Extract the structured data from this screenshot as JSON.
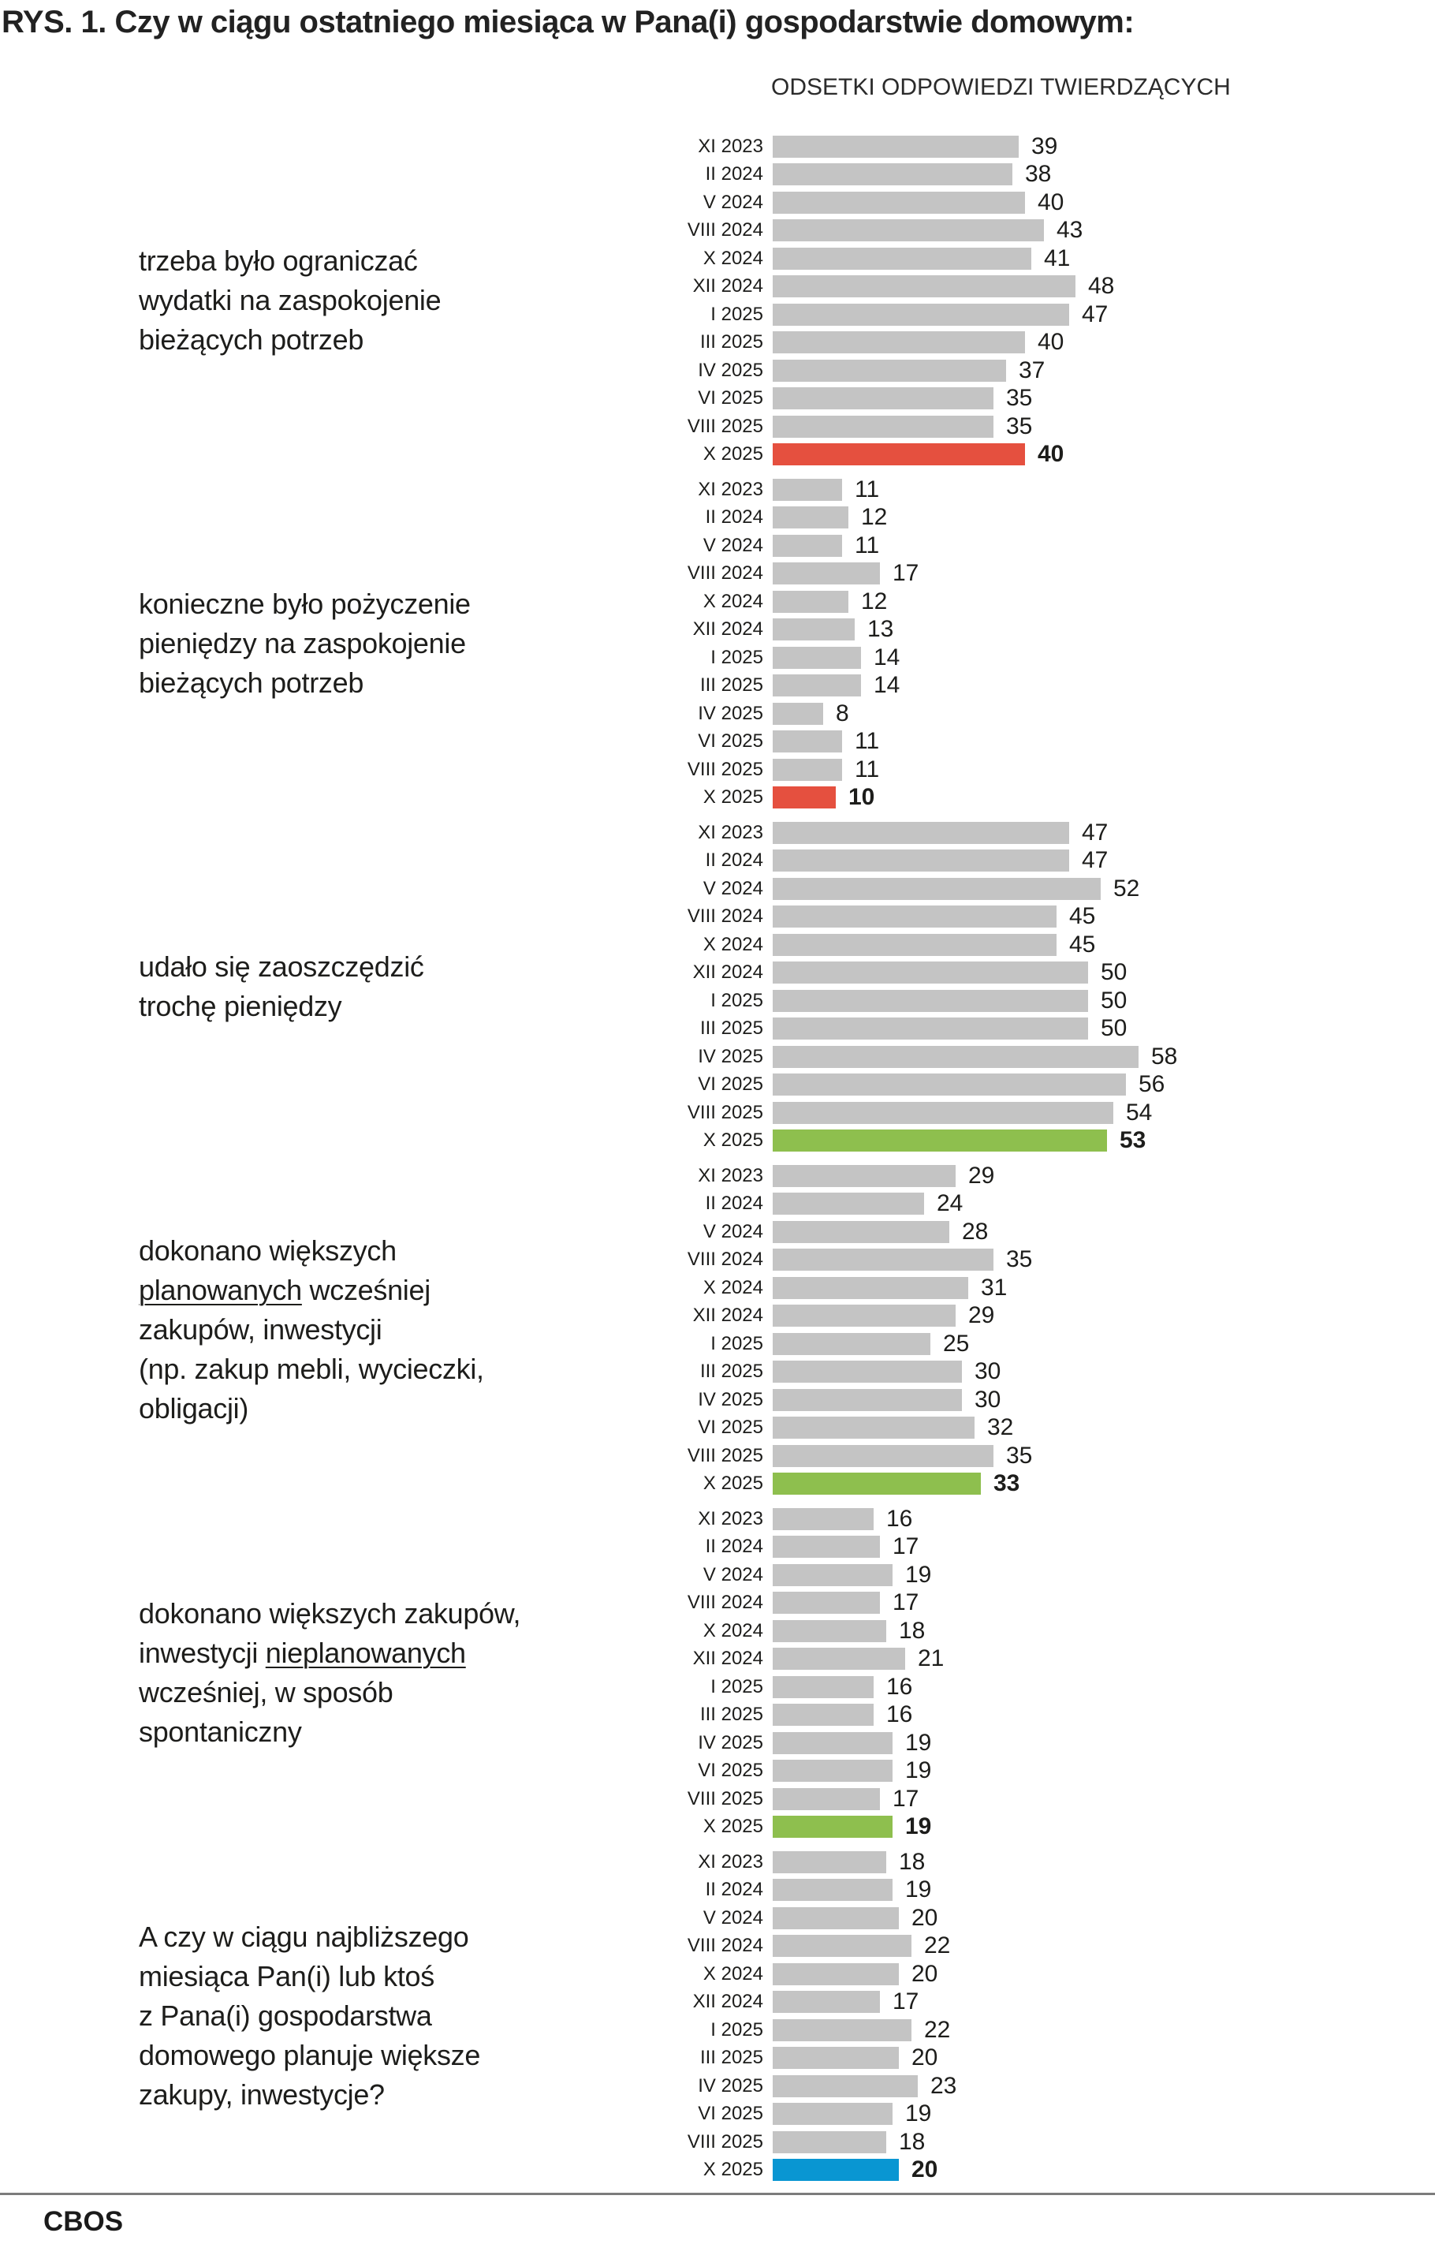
{
  "title": "RYS. 1. Czy w ciągu ostatniego miesiąca w Pana(i) gospodarstwie domowym:",
  "subtitle": "ODSETKI ODPOWIEDZI TWIERDZĄCYCH",
  "footer": {
    "brand": "CBOS"
  },
  "colors": {
    "bar_default": "#c4c4c4",
    "highlight_red": "#e5503f",
    "highlight_green": "#8ebf4e",
    "highlight_blue": "#0996d2",
    "text": "#1d1d1b",
    "rule": "#7c7c7c"
  },
  "chart_data": {
    "type": "bar",
    "orientation": "horizontal",
    "unit": "percent",
    "title": "RYS. 1. Czy w ciągu ostatniego miesiąca w Pana(i) gospodarstwie domowym:",
    "subtitle": "ODSETKI ODPOWIEDZI TWIERDZĄCYCH",
    "xlim": [
      0,
      60
    ],
    "grid": false,
    "value_labels": true,
    "categories": [
      "XI 2023",
      "II 2024",
      "V 2024",
      "VIII 2024",
      "X 2024",
      "XII 2024",
      "I 2025",
      "III 2025",
      "IV 2025",
      "VI 2025",
      "VIII 2025",
      "X 2025"
    ],
    "highlight_category": "X 2025",
    "groups": [
      {
        "question_lines": [
          [
            {
              "text": "trzeba było ograniczać"
            }
          ],
          [
            {
              "text": "wydatki na zaspokojenie"
            }
          ],
          [
            {
              "text": "bieżących potrzeb"
            }
          ]
        ],
        "values": [
          39,
          38,
          40,
          43,
          41,
          48,
          47,
          40,
          37,
          35,
          35,
          40
        ],
        "highlight_color": "#e5503f"
      },
      {
        "question_lines": [
          [
            {
              "text": "konieczne było pożyczenie"
            }
          ],
          [
            {
              "text": "pieniędzy na zaspokojenie"
            }
          ],
          [
            {
              "text": "bieżących potrzeb"
            }
          ]
        ],
        "values": [
          11,
          12,
          11,
          17,
          12,
          13,
          14,
          14,
          8,
          11,
          11,
          10
        ],
        "highlight_color": "#e5503f"
      },
      {
        "question_lines": [
          [
            {
              "text": "udało się zaoszczędzić"
            }
          ],
          [
            {
              "text": "trochę pieniędzy"
            }
          ]
        ],
        "values": [
          47,
          47,
          52,
          45,
          45,
          50,
          50,
          50,
          58,
          56,
          54,
          53
        ],
        "highlight_color": "#8ebf4e"
      },
      {
        "question_lines": [
          [
            {
              "text": "dokonano większych"
            }
          ],
          [
            {
              "text": "planowanych",
              "underline": true
            },
            {
              "text": " wcześniej"
            }
          ],
          [
            {
              "text": "zakupów, inwestycji"
            }
          ],
          [
            {
              "text": "(np. zakup mebli, wycieczki,"
            }
          ],
          [
            {
              "text": "obligacji)"
            }
          ]
        ],
        "values": [
          29,
          24,
          28,
          35,
          31,
          29,
          25,
          30,
          30,
          32,
          35,
          33
        ],
        "highlight_color": "#8ebf4e"
      },
      {
        "question_lines": [
          [
            {
              "text": "dokonano większych zakupów,"
            }
          ],
          [
            {
              "text": "inwestycji "
            },
            {
              "text": "nieplanowanych",
              "underline": true
            }
          ],
          [
            {
              "text": "wcześniej, w sposób"
            }
          ],
          [
            {
              "text": "spontaniczny"
            }
          ]
        ],
        "values": [
          16,
          17,
          19,
          17,
          18,
          21,
          16,
          16,
          19,
          19,
          17,
          19
        ],
        "highlight_color": "#8ebf4e"
      },
      {
        "question_lines": [
          [
            {
              "text": "A czy w ciągu najbliższego"
            }
          ],
          [
            {
              "text": "miesiąca Pan(i) lub ktoś"
            }
          ],
          [
            {
              "text": "z Pana(i) gospodarstwa"
            }
          ],
          [
            {
              "text": "domowego planuje większe"
            }
          ],
          [
            {
              "text": "zakupy, inwestycje?"
            }
          ]
        ],
        "values": [
          18,
          19,
          20,
          22,
          20,
          17,
          22,
          20,
          23,
          19,
          18,
          20
        ],
        "highlight_color": "#0996d2"
      }
    ]
  }
}
